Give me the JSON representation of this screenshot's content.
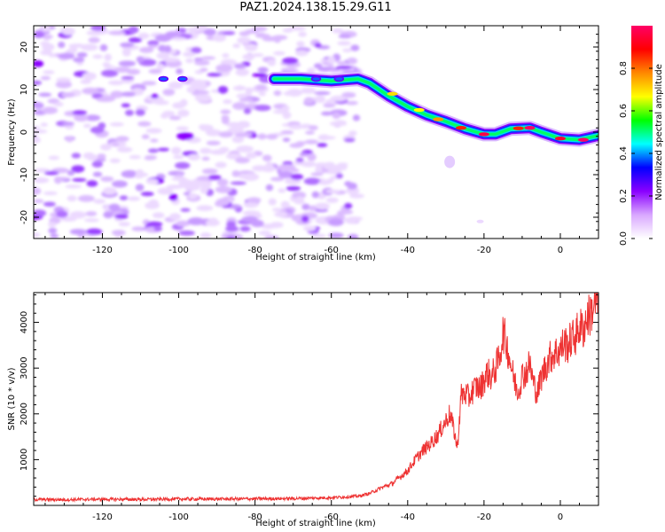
{
  "chart_data": [
    {
      "type": "heatmap",
      "title": "PAZ1.2024.138.15.29.G11",
      "xlabel": "Height of straight line (km)",
      "ylabel": "Frequency (Hz)",
      "xlim": [
        -138,
        10
      ],
      "ylim": [
        -25,
        25
      ],
      "x_ticks": [
        -120,
        -100,
        -80,
        -60,
        -40,
        -20,
        0
      ],
      "y_ticks": [
        -20,
        -10,
        0,
        10,
        20
      ],
      "colorbar": {
        "label": "Normalized spectral amplitude",
        "range": [
          0.0,
          1.0
        ],
        "ticks": [
          0.0,
          0.2,
          0.4,
          0.6,
          0.8
        ],
        "colors": [
          "#ffffff",
          "#d9a8ff",
          "#8a00ff",
          "#0000ff",
          "#00ffff",
          "#00ff00",
          "#ffff00",
          "#ff8800",
          "#ff0000",
          "#ff0066"
        ]
      },
      "noise_region_x": [
        -138,
        -53
      ],
      "ridge": {
        "x": [
          -75,
          -68,
          -60,
          -53,
          -50,
          -45,
          -40,
          -35,
          -30,
          -25,
          -20,
          -17,
          -13,
          -8,
          -5,
          0,
          5,
          10
        ],
        "y": [
          12.5,
          12.5,
          12.0,
          12.5,
          11.5,
          8.5,
          6.0,
          4.0,
          2.5,
          0.8,
          -0.5,
          -0.5,
          0.8,
          1.0,
          0.0,
          -1.5,
          -1.8,
          -0.8
        ]
      }
    },
    {
      "type": "line",
      "xlabel": "Height of straight line (km)",
      "ylabel": "SNR (10 * v/v)",
      "xlim": [
        -138,
        10
      ],
      "ylim": [
        0,
        4650
      ],
      "x_ticks": [
        -120,
        -100,
        -80,
        -60,
        -40,
        -20,
        0
      ],
      "y_ticks": [
        1000,
        2000,
        3000,
        4000
      ],
      "color": "#ee3333",
      "x": [
        -138,
        -130,
        -120,
        -110,
        -100,
        -90,
        -80,
        -70,
        -60,
        -53,
        -50,
        -47,
        -44,
        -42,
        -40,
        -38,
        -36,
        -34,
        -32,
        -30,
        -29,
        -28,
        -27,
        -26,
        -25,
        -24,
        -23,
        -22,
        -21,
        -20,
        -19,
        -18,
        -17,
        -16,
        -15,
        -14,
        -13,
        -12,
        -11,
        -10,
        -9,
        -8,
        -7,
        -6,
        -5,
        -4,
        -3,
        -2,
        -1,
        0,
        1,
        2,
        3,
        4,
        5,
        6,
        7,
        8,
        9,
        10
      ],
      "y": [
        130,
        125,
        135,
        130,
        140,
        140,
        145,
        150,
        170,
        200,
        260,
        380,
        480,
        620,
        760,
        1000,
        1200,
        1350,
        1550,
        1850,
        2000,
        1700,
        1250,
        2400,
        2450,
        2350,
        2500,
        2600,
        2550,
        2750,
        2900,
        2800,
        3000,
        3200,
        3800,
        3500,
        3100,
        2700,
        2500,
        2850,
        2900,
        3100,
        2650,
        2450,
        2800,
        3000,
        3200,
        3300,
        3350,
        3400,
        3550,
        3500,
        3650,
        3700,
        3900,
        3850,
        4100,
        4200,
        4400,
        4500
      ]
    }
  ]
}
